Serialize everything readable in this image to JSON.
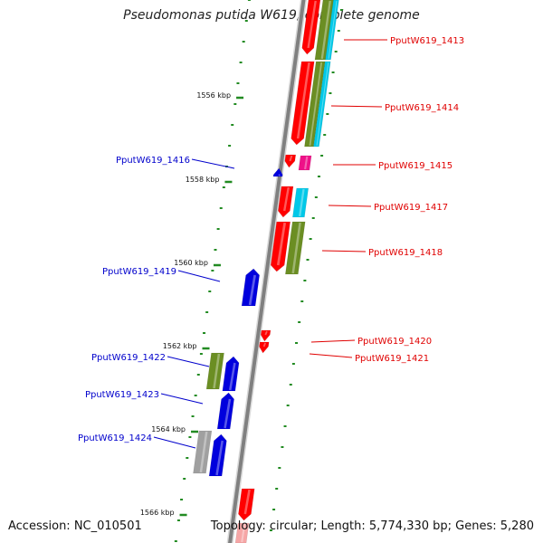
{
  "title": "Pseudomonas putida W619, complete genome",
  "accession": "Accession: NC_010501",
  "topology": "Topology: circular; Length: 5,774,330 bp; Genes: 5,280",
  "colors": {
    "backbone": "#808080",
    "forward_gene": "#0000dd",
    "reverse_gene": "#ff0000",
    "forward_label": "#0000cc",
    "reverse_label": "#e00000",
    "tick": "#228b22",
    "olive": "#6b8e23",
    "cyan": "#00c8e8",
    "magenta": "#ee1188",
    "grey": "#a0a0a0"
  },
  "scale_marks": [
    {
      "label": "1556 kbp"
    },
    {
      "label": "1558 kbp"
    },
    {
      "label": "1560 kbp"
    },
    {
      "label": "1562 kbp"
    },
    {
      "label": "1564 kbp"
    },
    {
      "label": "1566 kbp"
    }
  ],
  "genes": [
    {
      "label": "PputW619_1413",
      "strand": "reverse"
    },
    {
      "label": "PputW619_1414",
      "strand": "reverse"
    },
    {
      "label": "PputW619_1415",
      "strand": "reverse"
    },
    {
      "label": "PputW619_1416",
      "strand": "forward"
    },
    {
      "label": "PputW619_1417",
      "strand": "reverse"
    },
    {
      "label": "PputW619_1418",
      "strand": "reverse"
    },
    {
      "label": "PputW619_1419",
      "strand": "forward"
    },
    {
      "label": "PputW619_1420",
      "strand": "reverse"
    },
    {
      "label": "PputW619_1421",
      "strand": "reverse"
    },
    {
      "label": "PputW619_1422",
      "strand": "forward"
    },
    {
      "label": "PputW619_1423",
      "strand": "forward"
    },
    {
      "label": "PputW619_1424",
      "strand": "forward"
    }
  ]
}
